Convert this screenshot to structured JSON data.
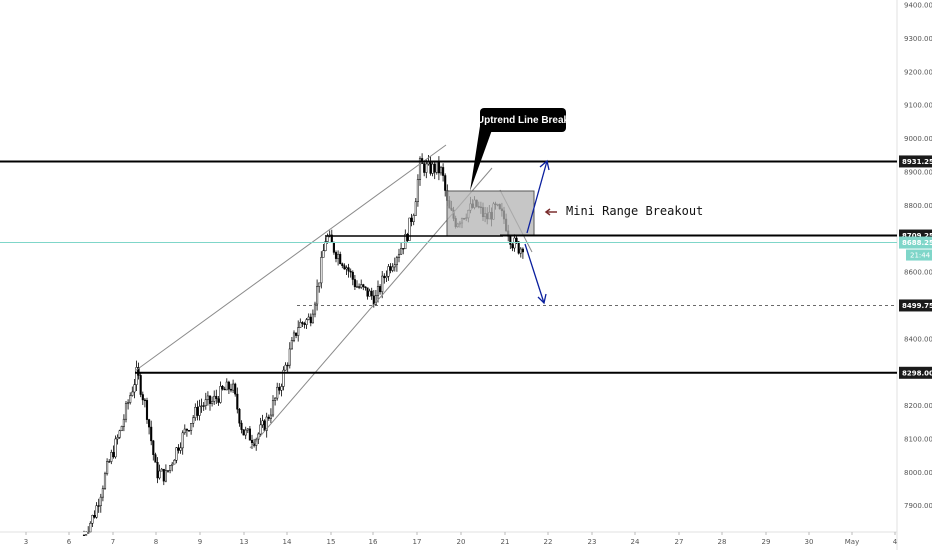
{
  "chart_data": {
    "type": "candlestick",
    "y_ticks": [
      7900,
      8000,
      8100,
      8200,
      8300,
      8400,
      8500,
      8600,
      8700,
      8800,
      8900,
      9000,
      9100,
      9200,
      9300,
      9400
    ],
    "y_tick_labels": [
      "7900.00",
      "8000.00",
      "8100.00",
      "8200.00",
      "8300.00",
      "8400.00",
      "8500.00",
      "8600.00",
      "8700.00",
      "8800.00",
      "8900.00",
      "9000.00",
      "9100.00",
      "9200.00",
      "9300.00",
      "9400.00"
    ],
    "ylim": [
      7815,
      9420
    ],
    "x_tick_labels": [
      "3",
      "6",
      "7",
      "8",
      "9",
      "13",
      "14",
      "15",
      "16",
      "17",
      "20",
      "21",
      "22",
      "23",
      "24",
      "27",
      "28",
      "29",
      "30",
      "May",
      "4"
    ],
    "levels": [
      {
        "value": 8931.25,
        "label": "8931.25",
        "style": "solid",
        "color": "#000000"
      },
      {
        "value": 8709.25,
        "label": "8709.25",
        "style": "solid",
        "color": "#000000"
      },
      {
        "value": 8499.75,
        "label": "8499.75",
        "style": "dashed",
        "color": "#555555"
      },
      {
        "value": 8298.0,
        "label": "8298.00",
        "style": "solid",
        "color": "#000000"
      }
    ],
    "current_price": {
      "value": 8688.25,
      "label": "8688.25",
      "color": "#7fd6c9"
    },
    "countdown": "21:44",
    "annotations": {
      "callout": "Uptrend Line Break",
      "breakout_text": "Mini Range Breakout"
    },
    "candle_seed": 7,
    "colors": {
      "background": "#ffffff",
      "candle_up": "#ffffff",
      "candle_down": "#000000",
      "accent": "#7fd6c9",
      "arrow": "#0a1f9e",
      "range_box": "#b3b3b3"
    }
  }
}
